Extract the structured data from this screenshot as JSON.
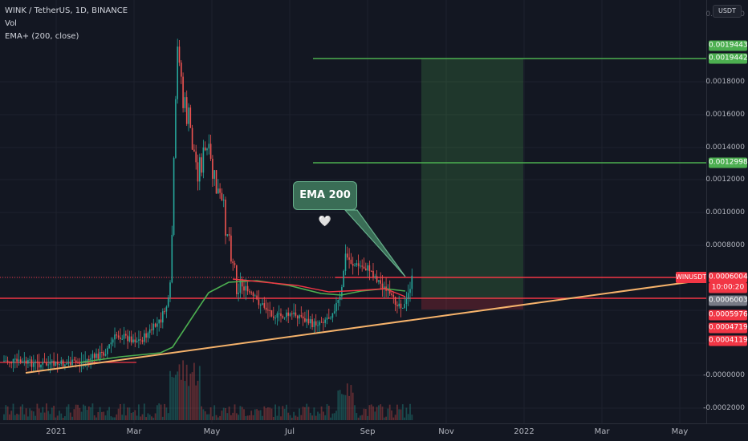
{
  "legend": {
    "symbol_line": "WINK / TetherUS, 1D, BINANCE",
    "vol_label": "Vol",
    "ema_label": "EMA+ (200, close)"
  },
  "currency_button": "USDT",
  "annotation": {
    "text": "EMA 200 🤍"
  },
  "price_axis": {
    "ticks": [
      "0.0018000",
      "0.0016000",
      "0.0014000",
      "0.0012000",
      "0.0010000",
      "0.0008000",
      "-0.0000000",
      "-0.0002000"
    ],
    "top_cut_label": "0.0022000"
  },
  "price_labels": [
    {
      "text": "0.0019443",
      "color": "#4caf50"
    },
    {
      "text": "0.0019442",
      "color": "#4caf50"
    },
    {
      "text": "0.0012998",
      "color": "#4caf50"
    },
    {
      "text": "0.0006004",
      "color": "#f23645"
    },
    {
      "text": "10:00:20",
      "color": "#f23645"
    },
    {
      "text": "0.0006003",
      "color": "#787b86"
    },
    {
      "text": "0.0005976",
      "color": "#f23645"
    },
    {
      "text": "0.0004719",
      "color": "#f23645"
    },
    {
      "text": "0.0004119",
      "color": "#f23645"
    }
  ],
  "symbol_tag": "WINUSDT",
  "time_axis": [
    "2021",
    "Mar",
    "May",
    "Jul",
    "Sep",
    "Nov",
    "2022",
    "Mar",
    "May"
  ],
  "colors": {
    "background": "#131722",
    "up": "#26a69a",
    "down": "#ef5350",
    "ema": "#4caf50",
    "trendline": "#f5b26b",
    "target": "#4caf50",
    "stop": "#f23645"
  },
  "chart_data": {
    "type": "candlestick",
    "indicators": [
      "Vol",
      "EMA+ (200, close)"
    ],
    "current_price": 0.0006004,
    "take_profit_levels": [
      0.0019443,
      0.0012998
    ],
    "entry": 0.0006003,
    "stop_levels": [
      0.0005976,
      0.0004719,
      0.0004119
    ],
    "ylim": [
      -0.0002,
      0.0022
    ]
  }
}
